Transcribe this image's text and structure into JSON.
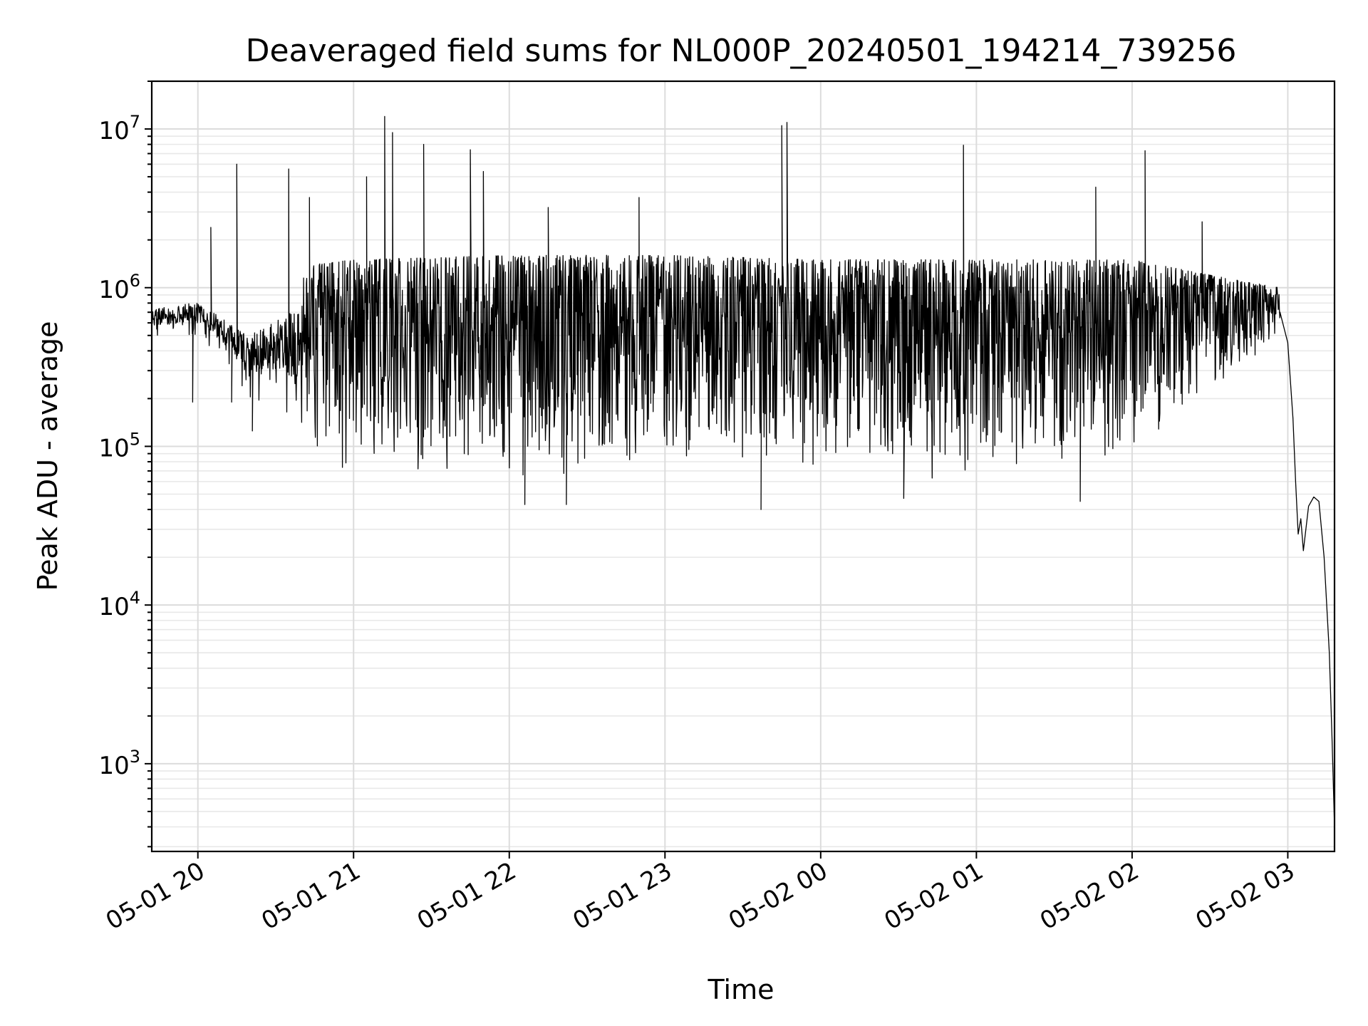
{
  "chart_data": {
    "type": "line",
    "title": "Deaveraged field sums for NL000P_20240501_194214_739256",
    "xlabel": "Time",
    "ylabel": "Peak ADU - average",
    "yscale": "log",
    "grid": true,
    "x_axis": {
      "type": "time",
      "min": "2024-05-01T19:42:14",
      "max": "2024-05-02T03:18:00",
      "ticks": [
        {
          "value": "2024-05-01T20:00",
          "label": "05-01 20"
        },
        {
          "value": "2024-05-01T21:00",
          "label": "05-01 21"
        },
        {
          "value": "2024-05-01T22:00",
          "label": "05-01 22"
        },
        {
          "value": "2024-05-01T23:00",
          "label": "05-01 23"
        },
        {
          "value": "2024-05-02T00:00",
          "label": "05-02 00"
        },
        {
          "value": "2024-05-02T01:00",
          "label": "05-02 01"
        },
        {
          "value": "2024-05-02T02:00",
          "label": "05-02 02"
        },
        {
          "value": "2024-05-02T03:00",
          "label": "05-02 03"
        }
      ]
    },
    "y_axis": {
      "min": 280,
      "max": 20000000,
      "ticks": [
        {
          "value": 1000,
          "base": "10",
          "exp": "3"
        },
        {
          "value": 10000,
          "base": "10",
          "exp": "4"
        },
        {
          "value": 100000,
          "base": "10",
          "exp": "5"
        },
        {
          "value": 1000000,
          "base": "10",
          "exp": "6"
        },
        {
          "value": 10000000,
          "base": "10",
          "exp": "7"
        }
      ]
    },
    "series": [
      {
        "color": "#000000",
        "envelope": [
          {
            "t": "2024-05-01T19:42",
            "lo": 480000,
            "hi": 780000
          },
          {
            "t": "2024-05-01T20:00",
            "lo": 500000,
            "hi": 900000
          },
          {
            "t": "2024-05-01T20:10",
            "lo": 350000,
            "hi": 700000
          },
          {
            "t": "2024-05-01T20:20",
            "lo": 200000,
            "hi": 600000
          },
          {
            "t": "2024-05-01T20:35",
            "lo": 150000,
            "hi": 900000
          },
          {
            "t": "2024-05-01T20:45",
            "lo": 80000,
            "hi": 1400000
          },
          {
            "t": "2024-05-01T21:00",
            "lo": 60000,
            "hi": 1500000
          },
          {
            "t": "2024-05-01T22:00",
            "lo": 55000,
            "hi": 1600000
          },
          {
            "t": "2024-05-01T23:00",
            "lo": 60000,
            "hi": 1600000
          },
          {
            "t": "2024-05-02T00:00",
            "lo": 60000,
            "hi": 1500000
          },
          {
            "t": "2024-05-02T01:00",
            "lo": 60000,
            "hi": 1500000
          },
          {
            "t": "2024-05-02T02:00",
            "lo": 90000,
            "hi": 1500000
          },
          {
            "t": "2024-05-02T02:30",
            "lo": 200000,
            "hi": 1200000
          },
          {
            "t": "2024-05-02T02:57",
            "lo": 500000,
            "hi": 1000000
          }
        ],
        "spikes": [
          {
            "t": "2024-05-01T20:05",
            "y": 2400000
          },
          {
            "t": "2024-05-01T20:15",
            "y": 6000000
          },
          {
            "t": "2024-05-01T20:35",
            "y": 5600000
          },
          {
            "t": "2024-05-01T20:43",
            "y": 3700000
          },
          {
            "t": "2024-05-01T21:05",
            "y": 5000000
          },
          {
            "t": "2024-05-01T21:12",
            "y": 12000000
          },
          {
            "t": "2024-05-01T21:15",
            "y": 9500000
          },
          {
            "t": "2024-05-01T21:27",
            "y": 8000000
          },
          {
            "t": "2024-05-01T21:45",
            "y": 7400000
          },
          {
            "t": "2024-05-01T21:50",
            "y": 5400000
          },
          {
            "t": "2024-05-01T22:15",
            "y": 3200000
          },
          {
            "t": "2024-05-01T22:50",
            "y": 3700000
          },
          {
            "t": "2024-05-01T23:45",
            "y": 10500000
          },
          {
            "t": "2024-05-01T23:47",
            "y": 11000000
          },
          {
            "t": "2024-05-02T00:55",
            "y": 7900000
          },
          {
            "t": "2024-05-02T01:46",
            "y": 4300000
          },
          {
            "t": "2024-05-02T02:05",
            "y": 7300000
          },
          {
            "t": "2024-05-02T02:27",
            "y": 2600000
          }
        ],
        "dips": [
          {
            "t": "2024-05-01T19:58",
            "y": 190000
          },
          {
            "t": "2024-05-01T20:13",
            "y": 190000
          },
          {
            "t": "2024-05-01T20:21",
            "y": 125000
          },
          {
            "t": "2024-05-01T22:06",
            "y": 43000
          },
          {
            "t": "2024-05-01T22:22",
            "y": 43000
          },
          {
            "t": "2024-05-01T23:37",
            "y": 40000
          },
          {
            "t": "2024-05-02T00:32",
            "y": 47000
          },
          {
            "t": "2024-05-02T01:40",
            "y": 45000
          }
        ],
        "tail": [
          {
            "t": "2024-05-02T02:57",
            "y": 700000
          },
          {
            "t": "2024-05-02T03:00",
            "y": 450000
          },
          {
            "t": "2024-05-02T03:02",
            "y": 150000
          },
          {
            "t": "2024-05-02T03:03",
            "y": 60000
          },
          {
            "t": "2024-05-02T03:04",
            "y": 28000
          },
          {
            "t": "2024-05-02T03:05",
            "y": 35000
          },
          {
            "t": "2024-05-02T03:06",
            "y": 22000
          },
          {
            "t": "2024-05-02T03:08",
            "y": 42000
          },
          {
            "t": "2024-05-02T03:10",
            "y": 48000
          },
          {
            "t": "2024-05-02T03:12",
            "y": 45000
          },
          {
            "t": "2024-05-02T03:14",
            "y": 20000
          },
          {
            "t": "2024-05-02T03:16",
            "y": 5000
          },
          {
            "t": "2024-05-02T03:17",
            "y": 1500
          },
          {
            "t": "2024-05-02T03:18",
            "y": 400
          }
        ]
      }
    ]
  }
}
